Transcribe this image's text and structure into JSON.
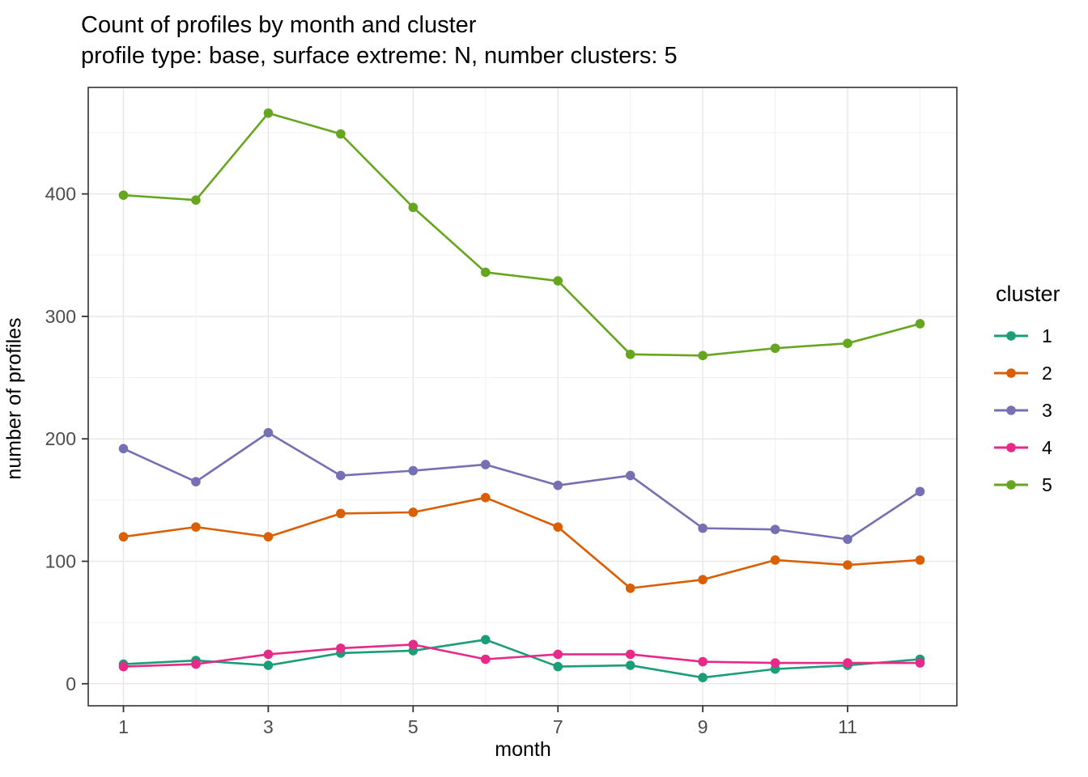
{
  "chart_data": {
    "type": "line",
    "title": "Count of profiles by month and cluster",
    "subtitle": "profile type: base, surface extreme: N, number clusters: 5",
    "xlabel": "month",
    "ylabel": "number of profiles",
    "legend_title": "cluster",
    "legend_position": "right",
    "grid": true,
    "x": [
      1,
      2,
      3,
      4,
      5,
      6,
      7,
      8,
      9,
      10,
      11,
      12
    ],
    "x_major_ticks": [
      1,
      3,
      5,
      7,
      9,
      11
    ],
    "x_minor_ticks": [
      2,
      4,
      6,
      8,
      10,
      12
    ],
    "y_major_ticks": [
      0,
      100,
      200,
      300,
      400
    ],
    "y_minor_ticks": [
      50,
      150,
      250,
      350,
      450
    ],
    "ylim": [
      -18,
      487
    ],
    "series": [
      {
        "name": "1",
        "color": "#1B9E77",
        "values": [
          16,
          19,
          15,
          25,
          27,
          36,
          14,
          15,
          5,
          12,
          15,
          20
        ]
      },
      {
        "name": "2",
        "color": "#D95F02",
        "values": [
          120,
          128,
          120,
          139,
          140,
          152,
          128,
          78,
          85,
          101,
          97,
          101
        ]
      },
      {
        "name": "3",
        "color": "#7570B3",
        "values": [
          192,
          165,
          205,
          170,
          174,
          179,
          162,
          170,
          127,
          126,
          118,
          157
        ]
      },
      {
        "name": "4",
        "color": "#E7298A",
        "values": [
          14,
          16,
          24,
          29,
          32,
          20,
          24,
          24,
          18,
          17,
          17,
          17
        ]
      },
      {
        "name": "5",
        "color": "#66A61E",
        "values": [
          399,
          395,
          466,
          449,
          389,
          336,
          329,
          269,
          268,
          274,
          278,
          294
        ]
      }
    ],
    "colors": {
      "panel_border": "#333333",
      "grid_major": "#e8e8e8",
      "grid_minor": "#f1f1f1",
      "tick_mark": "#333333",
      "tick_label": "#4d4d4d"
    }
  }
}
